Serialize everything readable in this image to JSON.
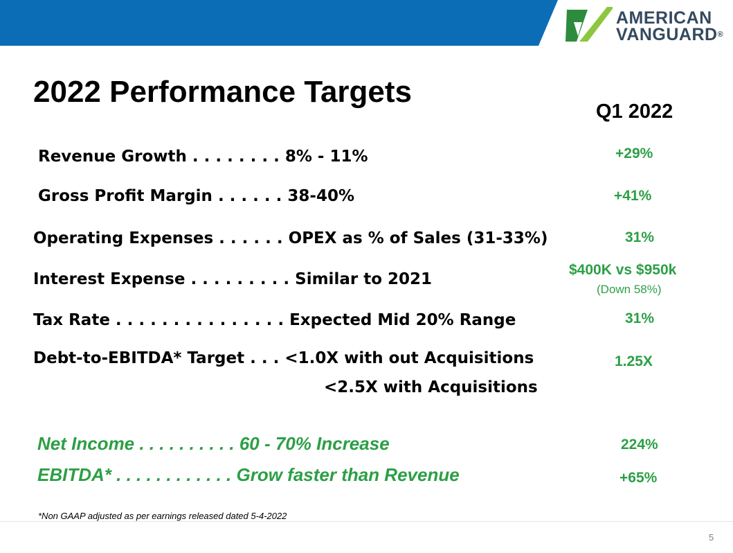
{
  "brand": {
    "line1": "AMERICAN",
    "line2": "VANGUARD",
    "reg_mark": "®",
    "banner_color": "#0b6db5",
    "logo_green": "#8dc63f",
    "logo_dark_green": "#2e8b3e",
    "logo_text_color": "#34495e"
  },
  "slide": {
    "title": "2022 Performance Targets",
    "column_header": "Q1 2022",
    "rows": [
      {
        "label": "Revenue Growth  . . . . . . . . 8% - 11%",
        "value": "+29%"
      },
      {
        "label": "Gross Profit Margin . . . . . . 38-40%",
        "value": "+41%"
      },
      {
        "label": "Operating Expenses . . . . . . OPEX as % of Sales (31-33%)",
        "value": "31%"
      },
      {
        "label": "Interest Expense . . . . . . . . . Similar to 2021",
        "value": "$400K vs $950k",
        "sub": "(Down 58%)"
      },
      {
        "label": "Tax Rate . . . . . . . . . . . . . . .  Expected Mid 20% Range",
        "value": "31%"
      },
      {
        "label": "Debt-to-EBITDA* Target . . .  <1.0X with out Acquisitions",
        "label2": "<2.5X with Acquisitions",
        "value": "1.25X"
      }
    ],
    "highlight_rows": [
      {
        "label": "Net Income . . . . . . . . . . 60 - 70% Increase",
        "value": "224%"
      },
      {
        "label": "EBITDA* . . . . . . . . . . . . Grow faster than Revenue",
        "value": "+65%"
      }
    ],
    "footnote": "*Non GAAP adjusted as per earnings released dated 5-4-2022",
    "page_number": "5",
    "accent_color": "#2c9f45"
  }
}
